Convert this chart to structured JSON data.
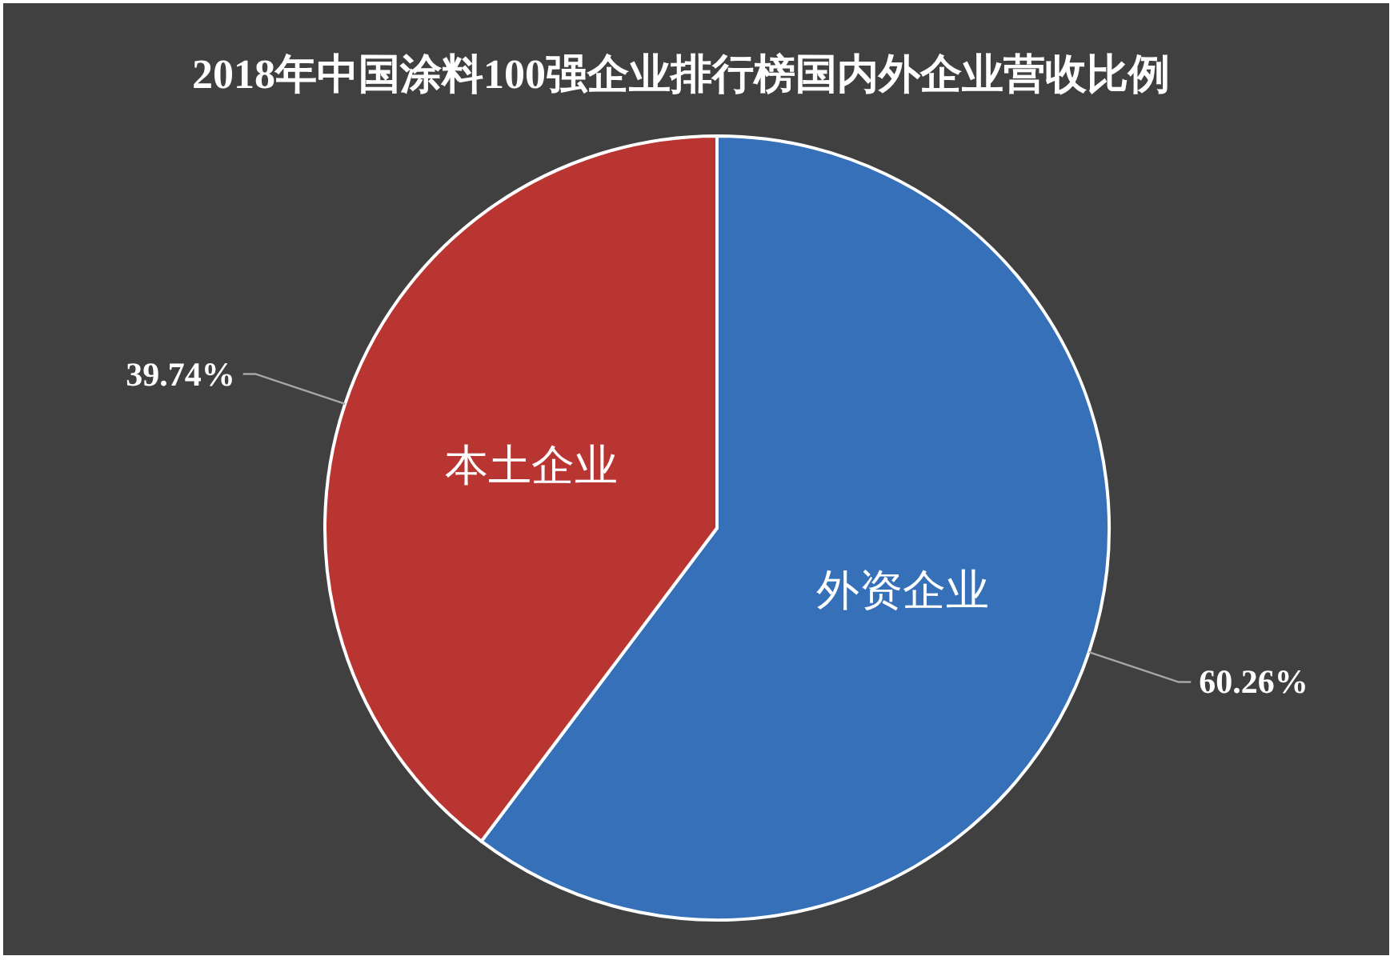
{
  "chart_data": {
    "type": "pie",
    "title": "2018年中国涂料100强企业排行榜国内外企业营收比例",
    "categories": [
      "外资企业",
      "本土企业"
    ],
    "values": [
      60.26,
      39.74
    ],
    "colors": [
      "#3570b8",
      "#b83532"
    ],
    "value_labels": [
      "60.26%",
      "39.74%"
    ]
  }
}
